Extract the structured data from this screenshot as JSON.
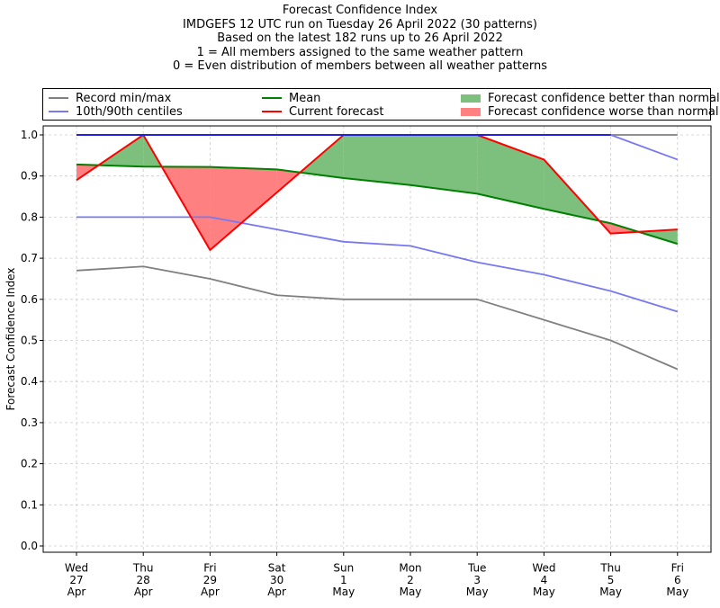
{
  "title_lines": [
    "Forecast Confidence Index",
    "IMDGEFS 12 UTC run on Tuesday 26 April 2022 (30 patterns)",
    "Based on the latest 182 runs up to 26 April 2022",
    "1 = All members assigned to the same weather pattern",
    "0 = Even distribution of members between all weather patterns"
  ],
  "legend": {
    "record": "Record min/max",
    "centiles": "10th/90th centiles",
    "mean": "Mean",
    "current": "Current forecast",
    "better": "Forecast confidence better than normal",
    "worse": "Forecast confidence worse than normal"
  },
  "colors": {
    "record": "#808080",
    "centiles": "#7878f0",
    "record_max": "#2020e0",
    "mean": "#008000",
    "current": "#ff0000",
    "better": "#7dbf7d",
    "worse": "#ff8080",
    "grid": "#cccccc"
  },
  "chart_data": {
    "type": "line",
    "ylabel": "Forecast Confidence Index",
    "xlabel": "",
    "ylim": [
      0.0,
      1.0
    ],
    "yticks": [
      "0.0",
      "0.1",
      "0.2",
      "0.3",
      "0.4",
      "0.5",
      "0.6",
      "0.7",
      "0.8",
      "0.9",
      "1.0"
    ],
    "categories": [
      [
        "Wed",
        "27",
        "Apr"
      ],
      [
        "Thu",
        "28",
        "Apr"
      ],
      [
        "Fri",
        "29",
        "Apr"
      ],
      [
        "Sat",
        "30",
        "Apr"
      ],
      [
        "Sun",
        "1",
        "May"
      ],
      [
        "Mon",
        "2",
        "May"
      ],
      [
        "Tue",
        "3",
        "May"
      ],
      [
        "Wed",
        "4",
        "May"
      ],
      [
        "Thu",
        "5",
        "May"
      ],
      [
        "Fri",
        "6",
        "May"
      ]
    ],
    "grid": true,
    "series": [
      {
        "name": "Record min/max",
        "role": "record_min",
        "values": [
          0.67,
          0.68,
          0.65,
          0.61,
          0.6,
          0.6,
          0.6,
          0.55,
          0.5,
          0.43
        ]
      },
      {
        "name": "Record min/max",
        "role": "record_max",
        "values": [
          1.0,
          1.0,
          1.0,
          1.0,
          1.0,
          1.0,
          1.0,
          1.0,
          1.0,
          1.0
        ]
      },
      {
        "name": "10th/90th centiles",
        "role": "p10",
        "values": [
          0.8,
          0.8,
          0.8,
          0.77,
          0.74,
          0.73,
          0.69,
          0.66,
          0.62,
          0.57
        ]
      },
      {
        "name": "10th/90th centiles",
        "role": "p90",
        "values": [
          1.0,
          1.0,
          1.0,
          1.0,
          1.0,
          1.0,
          1.0,
          1.0,
          1.0,
          0.94
        ]
      },
      {
        "name": "Mean",
        "role": "mean",
        "values": [
          0.928,
          0.923,
          0.922,
          0.916,
          0.895,
          0.878,
          0.857,
          0.82,
          0.785,
          0.735
        ]
      },
      {
        "name": "Current forecast",
        "role": "current",
        "values": [
          0.89,
          1.0,
          0.72,
          0.86,
          1.0,
          1.0,
          1.0,
          0.94,
          0.76,
          0.77
        ]
      }
    ]
  }
}
